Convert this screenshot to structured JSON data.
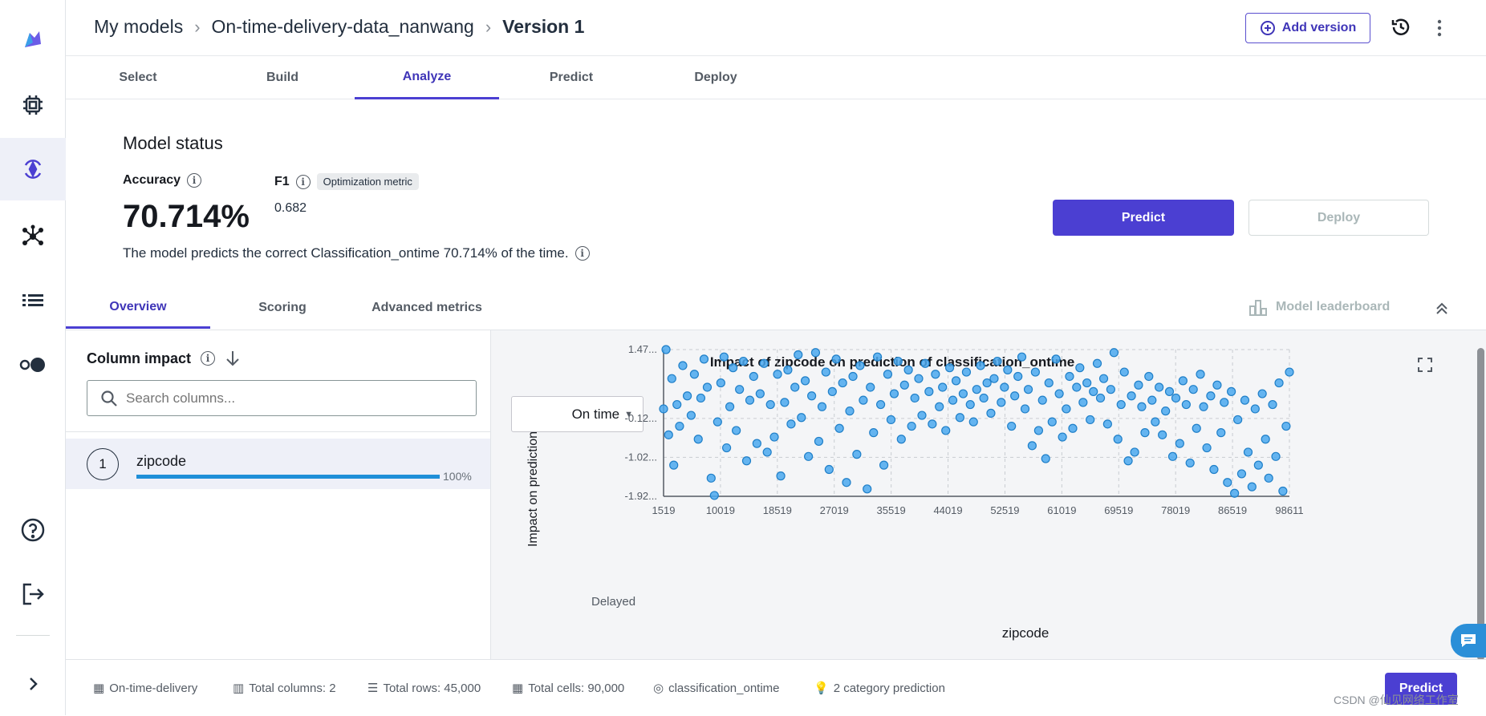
{
  "breadcrumb": {
    "root": "My models",
    "dataset": "On-time-delivery-data_nanwang",
    "current": "Version 1"
  },
  "header": {
    "add_version": "Add version"
  },
  "tabs": [
    "Select",
    "Build",
    "Analyze",
    "Predict",
    "Deploy"
  ],
  "status": {
    "title": "Model status",
    "accuracy_label": "Accuracy",
    "accuracy_value": "70.714%",
    "f1_label": "F1",
    "opt_badge": "Optimization metric",
    "f1_value": "0.682",
    "description": "The model predicts the correct Classification_ontime 70.714% of the time."
  },
  "actions": {
    "predict": "Predict",
    "deploy": "Deploy"
  },
  "subtabs": [
    "Overview",
    "Scoring",
    "Advanced metrics"
  ],
  "leaderboard": "Model leaderboard",
  "column_impact": {
    "title": "Column impact",
    "search_placeholder": "Search columns...",
    "items": [
      {
        "rank": "1",
        "name": "zipcode",
        "pct": "100%",
        "fraction": 1.0
      }
    ]
  },
  "footer": {
    "dataset": "On-time-delivery",
    "columns": "Total columns: 2",
    "rows": "Total rows: 45,000",
    "cells": "Total cells: 90,000",
    "target": "classification_ontime",
    "ptype": "2 category prediction",
    "predict": "Predict"
  },
  "watermark": "CSDN @仙见网络工作室",
  "colors": {
    "accent": "#4b3fd2",
    "point": "#4aa8ee",
    "bar": "#1f8fd8"
  },
  "chart_data": {
    "type": "scatter",
    "title": "Impact of zipcode on prediction of classification_ontime",
    "xlabel": "zipcode",
    "ylabel": "Impact on prediction",
    "class_selector": "On time",
    "bottom_label": "Delayed",
    "x_ticks": [
      "1519",
      "10019",
      "18519",
      "27019",
      "35519",
      "44019",
      "52519",
      "61019",
      "69519",
      "78019",
      "86519",
      "98611"
    ],
    "y_ticks": [
      "1.47...",
      "-0.12...",
      "-1.02...",
      "-1.92..."
    ],
    "ylim": [
      -1.92,
      1.47
    ],
    "xlim": [
      1519,
      98611
    ],
    "points": [
      [
        1519,
        0.1
      ],
      [
        1900,
        1.47
      ],
      [
        2300,
        -0.5
      ],
      [
        2800,
        0.8
      ],
      [
        3100,
        -1.2
      ],
      [
        3600,
        0.2
      ],
      [
        4000,
        -0.3
      ],
      [
        4500,
        1.1
      ],
      [
        5200,
        0.4
      ],
      [
        5800,
        -0.05
      ],
      [
        6300,
        0.9
      ],
      [
        6900,
        -0.6
      ],
      [
        7300,
        0.35
      ],
      [
        7800,
        1.25
      ],
      [
        8300,
        0.6
      ],
      [
        8900,
        -1.5
      ],
      [
        9400,
        -1.9
      ],
      [
        9900,
        -0.2
      ],
      [
        10400,
        0.7
      ],
      [
        10900,
        1.3
      ],
      [
        11300,
        -0.8
      ],
      [
        11800,
        0.15
      ],
      [
        12300,
        1.05
      ],
      [
        12800,
        -0.4
      ],
      [
        13300,
        0.55
      ],
      [
        13900,
        1.2
      ],
      [
        14400,
        -1.1
      ],
      [
        14900,
        0.3
      ],
      [
        15500,
        0.85
      ],
      [
        16000,
        -0.7
      ],
      [
        16500,
        0.45
      ],
      [
        17100,
        1.15
      ],
      [
        17600,
        -0.9
      ],
      [
        18100,
        0.2
      ],
      [
        18700,
        -0.55
      ],
      [
        19200,
        0.9
      ],
      [
        19700,
        -1.45
      ],
      [
        20300,
        0.25
      ],
      [
        20800,
        1.0
      ],
      [
        21300,
        -0.25
      ],
      [
        21900,
        0.6
      ],
      [
        22400,
        1.35
      ],
      [
        22900,
        -0.1
      ],
      [
        23500,
        0.75
      ],
      [
        24000,
        -1.0
      ],
      [
        24500,
        0.4
      ],
      [
        25100,
        1.4
      ],
      [
        25600,
        -0.65
      ],
      [
        26100,
        0.15
      ],
      [
        26700,
        0.95
      ],
      [
        27200,
        -1.3
      ],
      [
        27700,
        0.5
      ],
      [
        28300,
        1.25
      ],
      [
        28800,
        -0.35
      ],
      [
        29300,
        0.7
      ],
      [
        29900,
        -1.6
      ],
      [
        30400,
        0.05
      ],
      [
        30900,
        0.85
      ],
      [
        31500,
        -0.95
      ],
      [
        32000,
        1.1
      ],
      [
        32500,
        0.3
      ],
      [
        33100,
        -1.75
      ],
      [
        33600,
        0.6
      ],
      [
        34100,
        -0.45
      ],
      [
        34700,
        1.3
      ],
      [
        35200,
        0.2
      ],
      [
        35700,
        -1.2
      ],
      [
        36300,
        0.9
      ],
      [
        36800,
        -0.15
      ],
      [
        37300,
        0.45
      ],
      [
        37900,
        1.2
      ],
      [
        38400,
        -0.6
      ],
      [
        38900,
        0.65
      ],
      [
        39500,
        1.0
      ],
      [
        40000,
        -0.3
      ],
      [
        40500,
        0.35
      ],
      [
        41100,
        0.8
      ],
      [
        41600,
        -0.05
      ],
      [
        42100,
        1.15
      ],
      [
        42700,
        0.5
      ],
      [
        43200,
        -0.25
      ],
      [
        43700,
        0.9
      ],
      [
        44300,
        0.15
      ],
      [
        44800,
        0.6
      ],
      [
        45300,
        -0.4
      ],
      [
        45900,
        1.05
      ],
      [
        46400,
        0.3
      ],
      [
        46900,
        0.75
      ],
      [
        47500,
        -0.1
      ],
      [
        48000,
        0.45
      ],
      [
        48500,
        0.95
      ],
      [
        49100,
        0.2
      ],
      [
        49600,
        -0.2
      ],
      [
        50100,
        0.55
      ],
      [
        50700,
        1.1
      ],
      [
        51200,
        0.35
      ],
      [
        51700,
        0.7
      ],
      [
        52300,
        0.0
      ],
      [
        52800,
        0.8
      ],
      [
        53300,
        1.2
      ],
      [
        53900,
        0.25
      ],
      [
        54400,
        0.6
      ],
      [
        54900,
        1.0
      ],
      [
        55500,
        -0.3
      ],
      [
        56000,
        0.4
      ],
      [
        56500,
        0.85
      ],
      [
        57100,
        1.3
      ],
      [
        57600,
        0.1
      ],
      [
        58100,
        0.55
      ],
      [
        58700,
        -0.75
      ],
      [
        59200,
        0.95
      ],
      [
        59700,
        -0.4
      ],
      [
        60300,
        0.3
      ],
      [
        60800,
        -1.05
      ],
      [
        61300,
        0.7
      ],
      [
        61800,
        -0.2
      ],
      [
        62400,
        1.25
      ],
      [
        62900,
        0.45
      ],
      [
        63400,
        -0.55
      ],
      [
        64000,
        0.1
      ],
      [
        64500,
        0.85
      ],
      [
        65000,
        -0.35
      ],
      [
        65600,
        0.6
      ],
      [
        66100,
        1.05
      ],
      [
        66600,
        0.25
      ],
      [
        67200,
        0.7
      ],
      [
        67700,
        -0.15
      ],
      [
        68200,
        0.5
      ],
      [
        68800,
        1.15
      ],
      [
        69300,
        0.35
      ],
      [
        69800,
        0.8
      ],
      [
        70400,
        -0.25
      ],
      [
        70900,
        0.55
      ],
      [
        71400,
        1.4
      ],
      [
        72000,
        -0.6
      ],
      [
        72500,
        0.2
      ],
      [
        73000,
        0.95
      ],
      [
        73600,
        -1.1
      ],
      [
        74100,
        0.4
      ],
      [
        74600,
        -0.9
      ],
      [
        75200,
        0.65
      ],
      [
        75700,
        0.15
      ],
      [
        76200,
        -0.45
      ],
      [
        76800,
        0.85
      ],
      [
        77300,
        0.3
      ],
      [
        77800,
        -0.2
      ],
      [
        78400,
        0.6
      ],
      [
        78900,
        -0.5
      ],
      [
        79400,
        0.05
      ],
      [
        80000,
        0.5
      ],
      [
        80500,
        -1.0
      ],
      [
        81000,
        0.35
      ],
      [
        81600,
        -0.7
      ],
      [
        82100,
        0.75
      ],
      [
        82600,
        0.2
      ],
      [
        83200,
        -1.15
      ],
      [
        83700,
        0.55
      ],
      [
        84200,
        -0.35
      ],
      [
        84800,
        0.9
      ],
      [
        85300,
        0.15
      ],
      [
        85800,
        -0.8
      ],
      [
        86400,
        0.4
      ],
      [
        86900,
        -1.3
      ],
      [
        87400,
        0.65
      ],
      [
        88000,
        -0.45
      ],
      [
        88500,
        0.25
      ],
      [
        89000,
        -1.6
      ],
      [
        89600,
        0.5
      ],
      [
        90100,
        -1.85
      ],
      [
        90600,
        -0.15
      ],
      [
        91200,
        -1.4
      ],
      [
        91700,
        0.3
      ],
      [
        92200,
        -0.9
      ],
      [
        92800,
        -1.7
      ],
      [
        93300,
        0.1
      ],
      [
        93800,
        -1.2
      ],
      [
        94400,
        0.45
      ],
      [
        94900,
        -0.6
      ],
      [
        95400,
        -1.5
      ],
      [
        96000,
        0.2
      ],
      [
        96500,
        -1.0
      ],
      [
        97000,
        0.7
      ],
      [
        97600,
        -1.8
      ],
      [
        98100,
        -0.3
      ],
      [
        98611,
        0.95
      ]
    ]
  }
}
